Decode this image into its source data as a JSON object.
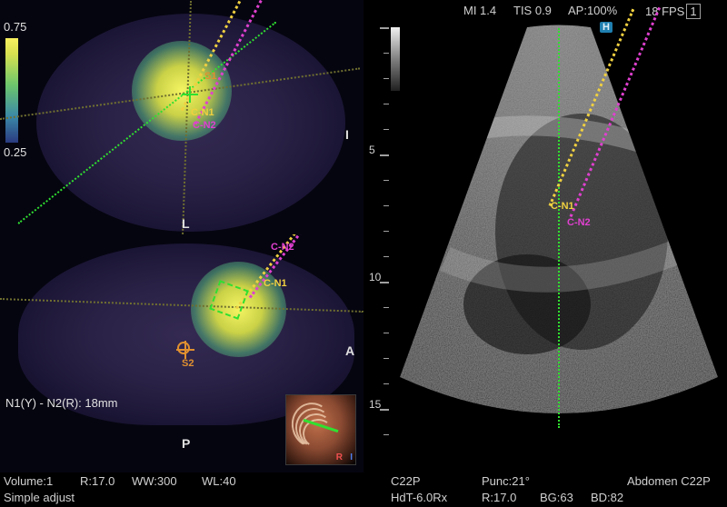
{
  "colorbar": {
    "high": "0.75",
    "low": "0.25"
  },
  "ct_top": {
    "labels": {
      "S1": "S1",
      "CN1": "C-N1",
      "CN2": "C-N2",
      "I": "I",
      "L": "L"
    }
  },
  "ct_bottom": {
    "labels": {
      "S2": "S2",
      "CN1": "C-N1",
      "CN2": "C-N2",
      "A": "A",
      "P": "P"
    },
    "distance": "N1(Y) - N2(R):  18mm"
  },
  "thumb3d": {
    "axes": {
      "R": "R",
      "I": "I"
    }
  },
  "ultrasound": {
    "top": {
      "MI": "MI 1.4",
      "TIS": "TIS 0.9",
      "AP": "AP:100%",
      "FPS": "18 FPS",
      "FPS_val": "1"
    },
    "depth_labels": {
      "d5": "5",
      "d10": "10",
      "d15": "15"
    },
    "needle": {
      "CN1": "C-N1",
      "CN2": "C-N2"
    }
  },
  "bottom_left": {
    "volume": "Volume:1",
    "R": "R:17.0",
    "WW": "WW:300",
    "WL": "WL:40",
    "simple": "Simple adjust"
  },
  "bottom_right": {
    "probe": "C22P",
    "punc": "Punc:21°",
    "preset": "Abdomen C22P",
    "hdt": "HdT-6.0Rx",
    "R": "R:17.0",
    "BG": "BG:63",
    "BD": "BD:82"
  },
  "colors": {
    "green": "#30e030",
    "yellow": "#f0d040",
    "magenta": "#e040d0",
    "orange": "#e09030"
  }
}
